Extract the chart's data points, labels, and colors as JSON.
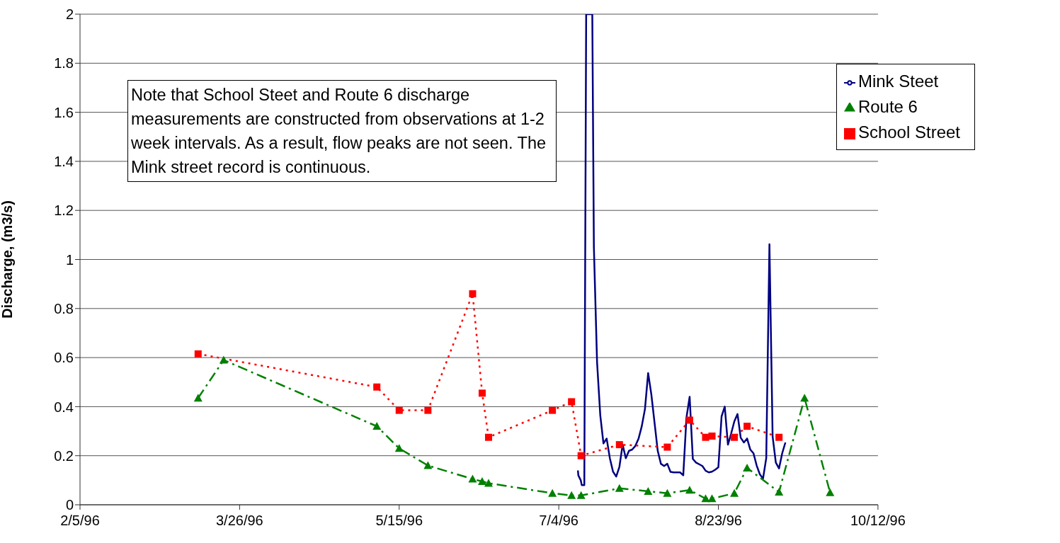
{
  "chart_data": {
    "type": "line",
    "ylabel": "Discharge, (m3/s)",
    "annotations": [
      "Note that School Steet and Route 6 discharge measurements are constructed from observations at 1-2 week intervals. As a result, flow peaks are not seen. The Mink street record is continuous."
    ],
    "xlim": [
      "1996-02-05",
      "1996-10-12"
    ],
    "xticks": [
      {
        "value": "1996-02-05",
        "label": "2/5/96"
      },
      {
        "value": "1996-03-26",
        "label": "3/26/96"
      },
      {
        "value": "1996-05-15",
        "label": "5/15/96"
      },
      {
        "value": "1996-07-04",
        "label": "7/4/96"
      },
      {
        "value": "1996-08-23",
        "label": "8/23/96"
      },
      {
        "value": "1996-10-12",
        "label": "10/12/96"
      }
    ],
    "ylim": [
      0,
      2
    ],
    "yticks": [
      0,
      0.2,
      0.4,
      0.6,
      0.8,
      1,
      1.2,
      1.4,
      1.6,
      1.8,
      2
    ],
    "grid": "y",
    "legend": "top right",
    "series": [
      {
        "name": "Mink Steet",
        "color": "#000080",
        "marker": "none",
        "line_style": "solid",
        "x": [
          "1996-07-10T00:00",
          "1996-07-10T03:00",
          "1996-07-10T21:00",
          "1996-07-11T05:00",
          "1996-07-12T00:00",
          "1996-07-12T14:00",
          "1996-07-14T12:00",
          "1996-07-15",
          "1996-07-16",
          "1996-07-17",
          "1996-07-18",
          "1996-07-19",
          "1996-07-20",
          "1996-07-21",
          "1996-07-22",
          "1996-07-23",
          "1996-07-24",
          "1996-07-25",
          "1996-07-26",
          "1996-07-27",
          "1996-07-28",
          "1996-07-29",
          "1996-07-30",
          "1996-07-31",
          "1996-08-01",
          "1996-08-02",
          "1996-08-03",
          "1996-08-04",
          "1996-08-05",
          "1996-08-06",
          "1996-08-07",
          "1996-08-08",
          "1996-08-09",
          "1996-08-10",
          "1996-08-11",
          "1996-08-12",
          "1996-08-13",
          "1996-08-14",
          "1996-08-15",
          "1996-08-16",
          "1996-08-18",
          "1996-08-19",
          "1996-08-20",
          "1996-08-21",
          "1996-08-22",
          "1996-08-23",
          "1996-08-24",
          "1996-08-25",
          "1996-08-26",
          "1996-08-27",
          "1996-08-28",
          "1996-08-29",
          "1996-08-30",
          "1996-08-31",
          "1996-09-01",
          "1996-09-02",
          "1996-09-03",
          "1996-09-04",
          "1996-09-05",
          "1996-09-06",
          "1996-09-07",
          "1996-09-08",
          "1996-09-09",
          "1996-09-10",
          "1996-09-11",
          "1996-09-12",
          "1996-09-13"
        ],
        "values": [
          0.14,
          0.12,
          0.1,
          0.08,
          0.08,
          2,
          2,
          1.05,
          0.58,
          0.365,
          0.25,
          0.27,
          0.19,
          0.135,
          0.115,
          0.155,
          0.245,
          0.19,
          0.22,
          0.225,
          0.24,
          0.27,
          0.32,
          0.39,
          0.537,
          0.45,
          0.335,
          0.22,
          0.167,
          0.158,
          0.167,
          0.134,
          0.132,
          0.132,
          0.132,
          0.12,
          0.355,
          0.44,
          0.187,
          0.172,
          0.158,
          0.139,
          0.132,
          0.135,
          0.143,
          0.153,
          0.36,
          0.4,
          0.245,
          0.29,
          0.34,
          0.37,
          0.273,
          0.254,
          0.27,
          0.225,
          0.21,
          0.16,
          0.124,
          0.107,
          0.19,
          1.062,
          0.278,
          0.172,
          0.148,
          0.21,
          0.254
        ]
      },
      {
        "name": "School Street",
        "color": "#ff0000",
        "marker": "square",
        "line_style": "dotted",
        "x": [
          "1996-03-13",
          "1996-05-08",
          "1996-05-15",
          "1996-05-24",
          "1996-06-07",
          "1996-06-10",
          "1996-06-12",
          "1996-07-02",
          "1996-07-08",
          "1996-07-11",
          "1996-07-23",
          "1996-08-07",
          "1996-08-14",
          "1996-08-19",
          "1996-08-21",
          "1996-08-28",
          "1996-09-01",
          "1996-09-11"
        ],
        "values": [
          0.615,
          0.48,
          0.385,
          0.385,
          0.86,
          0.455,
          0.275,
          0.385,
          0.42,
          0.2,
          0.245,
          0.235,
          0.345,
          0.275,
          0.28,
          0.275,
          0.32,
          0.275
        ]
      },
      {
        "name": "Route 6",
        "color": "#008000",
        "marker": "triangle",
        "line_style": "dashed",
        "x": [
          "1996-03-13",
          "1996-03-21",
          "1996-05-08",
          "1996-05-15",
          "1996-05-24",
          "1996-06-07",
          "1996-06-10",
          "1996-06-12",
          "1996-07-02",
          "1996-07-08",
          "1996-07-11",
          "1996-07-23",
          "1996-08-01",
          "1996-08-07",
          "1996-08-14",
          "1996-08-19",
          "1996-08-21",
          "1996-08-28",
          "1996-09-01",
          "1996-09-11",
          "1996-09-19",
          "1996-09-27"
        ],
        "values": [
          0.435,
          0.59,
          0.32,
          0.23,
          0.16,
          0.105,
          0.095,
          0.088,
          0.047,
          0.038,
          0.038,
          0.067,
          0.055,
          0.047,
          0.06,
          0.025,
          0.025,
          0.047,
          0.15,
          0.052,
          0.435,
          0.05
        ]
      }
    ]
  }
}
